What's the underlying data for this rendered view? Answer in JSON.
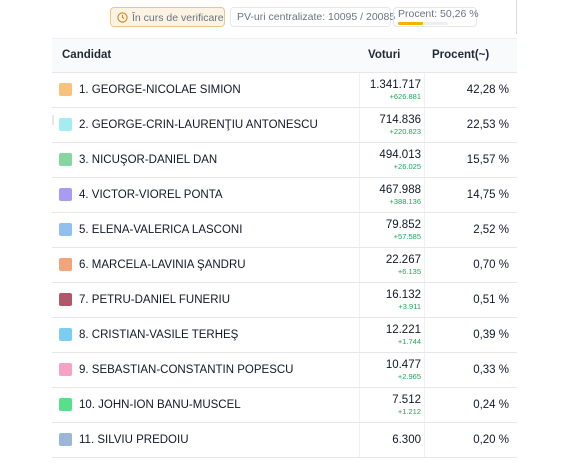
{
  "header": {
    "status_label": "În curs de verificare",
    "pv_label": "PV-uri centralizate: 10095 / 20085",
    "percent_label": "Procent: 50,26 %",
    "percent_value": 50.26
  },
  "table": {
    "columns": {
      "candidate": "Candidat",
      "votes": "Voturi",
      "percent": "Procent(~)"
    },
    "rows": [
      {
        "name": "1. GEORGE-NICOLAE SIMION",
        "votes": "1.341.717",
        "delta": "+626.881",
        "percent": "42,28 %",
        "color": "#f7c27a"
      },
      {
        "name": "2. GEORGE-CRIN-LAURENŢIU ANTONESCU",
        "votes": "714.836",
        "delta": "+220.823",
        "percent": "22,53 %",
        "color": "#a5ecf0"
      },
      {
        "name": "3. NICUŞOR-DANIEL DAN",
        "votes": "494.013",
        "delta": "+26.025",
        "percent": "15,57 %",
        "color": "#86d6a0"
      },
      {
        "name": "4. VICTOR-VIOREL PONTA",
        "votes": "467.988",
        "delta": "+388.136",
        "percent": "14,75 %",
        "color": "#a99cf0"
      },
      {
        "name": "5. ELENA-VALERICA LASCONI",
        "votes": "79.852",
        "delta": "+57.585",
        "percent": "2,52 %",
        "color": "#90bff0"
      },
      {
        "name": "6. MARCELA-LAVINIA ŞANDRU",
        "votes": "22.267",
        "delta": "+6.135",
        "percent": "0,70 %",
        "color": "#f2a57c"
      },
      {
        "name": "7. PETRU-DANIEL FUNERIU",
        "votes": "16.132",
        "delta": "+3.911",
        "percent": "0,51 %",
        "color": "#b0586a"
      },
      {
        "name": "8. CRISTIAN-VASILE TERHEŞ",
        "votes": "12.221",
        "delta": "+1.744",
        "percent": "0,39 %",
        "color": "#7ccdf2"
      },
      {
        "name": "9. SEBASTIAN-CONSTANTIN POPESCU",
        "votes": "10.477",
        "delta": "+2.965",
        "percent": "0,33 %",
        "color": "#f5a3c4"
      },
      {
        "name": "10. JOHN-ION BANU-MUSCEL",
        "votes": "7.512",
        "delta": "+1.212",
        "percent": "0,24 %",
        "color": "#56e08c"
      },
      {
        "name": "11. SILVIU PREDOIU",
        "votes": "6.300",
        "delta": "",
        "percent": "0,20 %",
        "color": "#9cb6d8"
      }
    ]
  }
}
